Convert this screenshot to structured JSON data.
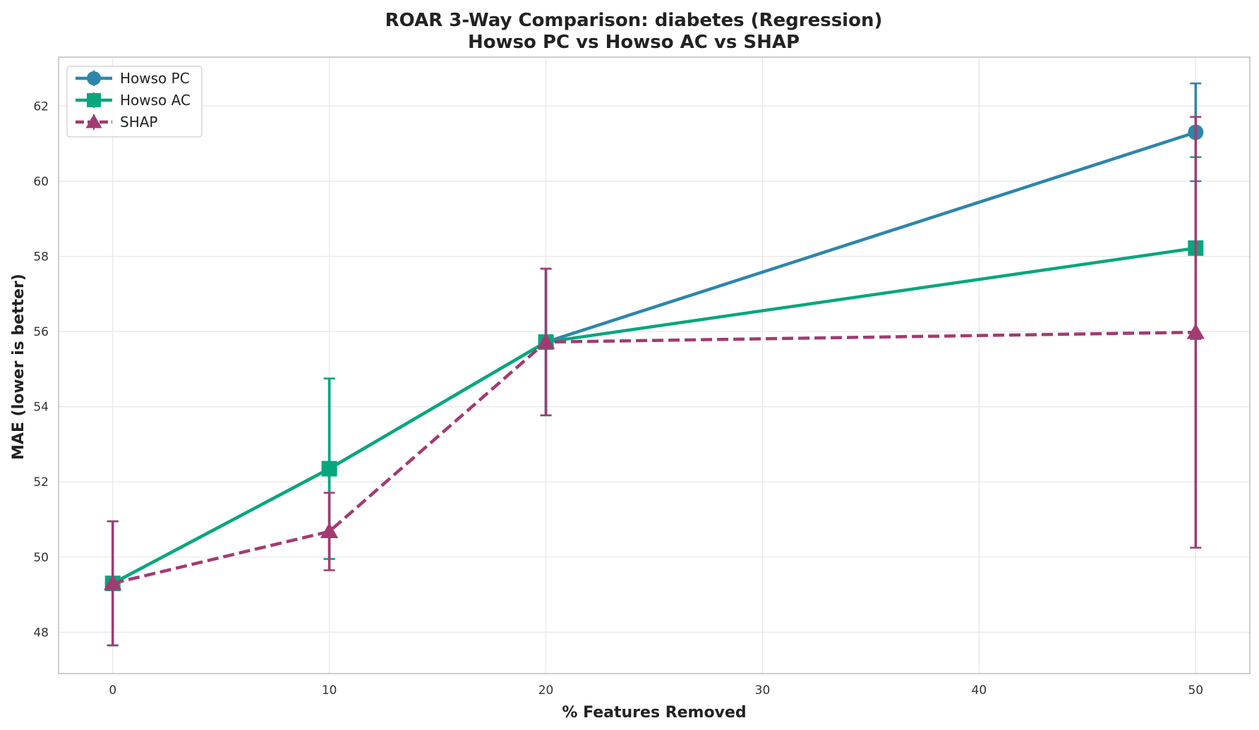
{
  "chart_data": {
    "type": "line",
    "title_line1": "ROAR 3-Way Comparison: diabetes (Regression)",
    "title_line2": "Howso PC vs Howso AC vs SHAP",
    "xlabel": "% Features Removed",
    "ylabel": "MAE (lower is better)",
    "x": [
      0,
      10,
      20,
      50
    ],
    "xlim": [
      -2.5,
      52.5
    ],
    "ylim": [
      46.9,
      63.3
    ],
    "xticks": [
      0,
      10,
      20,
      30,
      40,
      50
    ],
    "yticks": [
      48,
      50,
      52,
      54,
      56,
      58,
      60,
      62
    ],
    "grid": true,
    "legend_position": "top-left",
    "series": [
      {
        "name": "Howso PC",
        "color": "#2e86ab",
        "marker": "circle",
        "linestyle": "solid",
        "values": [
          49.3,
          52.35,
          55.72,
          61.3
        ],
        "errors": [
          1.65,
          2.4,
          1.95,
          1.3
        ]
      },
      {
        "name": "Howso AC",
        "color": "#06a77d",
        "marker": "square",
        "linestyle": "solid",
        "values": [
          49.3,
          52.35,
          55.72,
          58.22
        ],
        "errors": [
          1.65,
          2.4,
          1.95,
          2.42
        ]
      },
      {
        "name": "SHAP",
        "color": "#a23b72",
        "marker": "triangle",
        "linestyle": "dashed",
        "values": [
          49.3,
          50.68,
          55.72,
          55.98
        ],
        "errors": [
          1.65,
          1.03,
          1.95,
          5.73
        ]
      }
    ]
  }
}
